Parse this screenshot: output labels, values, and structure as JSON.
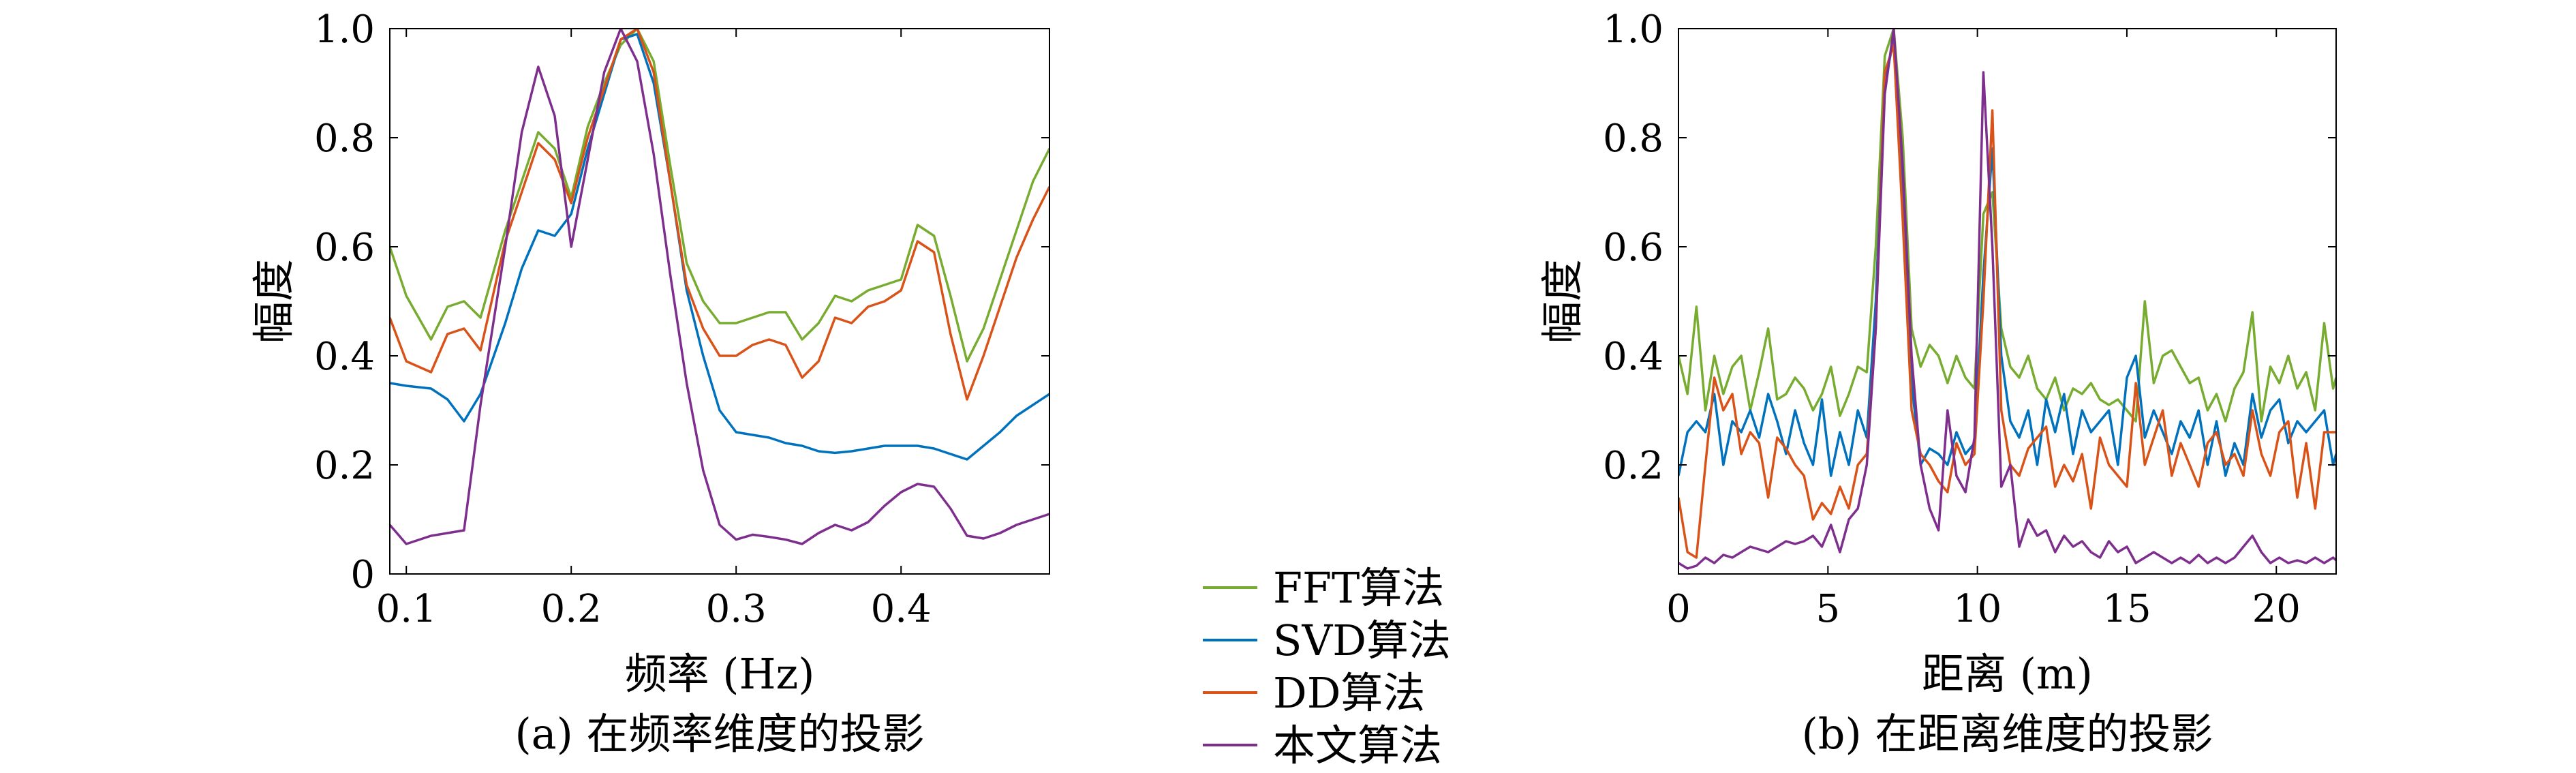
{
  "colors": {
    "fft": "#77ac30",
    "svd": "#0072bd",
    "dd": "#d95319",
    "ours": "#7e2f8e"
  },
  "legend": {
    "placement": "center",
    "items": [
      "FFT算法",
      "SVD算法",
      "DD算法",
      "本文算法"
    ]
  },
  "chart_data": [
    {
      "type": "line",
      "caption": "(a) 在频率维度的投影",
      "xlabel": "频率 (Hz)",
      "ylabel": "幅度",
      "xlim": [
        0.09,
        0.49
      ],
      "ylim": [
        0,
        1.0
      ],
      "xticks": [
        0.1,
        0.2,
        0.3,
        0.4
      ],
      "xtick_labels": [
        "0.1",
        "0.2",
        "0.3",
        "0.4"
      ],
      "yticks": [
        0,
        0.2,
        0.4,
        0.6,
        0.8,
        1.0
      ],
      "ytick_labels": [
        "0",
        "0.2",
        "0.4",
        "0.6",
        "0.8",
        "1.0"
      ],
      "grid": false,
      "series": [
        {
          "name": "FFT算法",
          "color_key": "fft",
          "x": [
            0.09,
            0.1,
            0.115,
            0.125,
            0.135,
            0.145,
            0.16,
            0.17,
            0.18,
            0.19,
            0.2,
            0.21,
            0.22,
            0.23,
            0.24,
            0.25,
            0.26,
            0.27,
            0.28,
            0.29,
            0.3,
            0.31,
            0.32,
            0.33,
            0.34,
            0.35,
            0.36,
            0.37,
            0.38,
            0.39,
            0.4,
            0.41,
            0.42,
            0.43,
            0.44,
            0.45,
            0.46,
            0.47,
            0.48,
            0.49
          ],
          "y": [
            0.6,
            0.51,
            0.43,
            0.49,
            0.5,
            0.47,
            0.63,
            0.72,
            0.81,
            0.78,
            0.69,
            0.82,
            0.9,
            0.97,
            1.0,
            0.94,
            0.75,
            0.57,
            0.5,
            0.46,
            0.46,
            0.47,
            0.48,
            0.48,
            0.43,
            0.46,
            0.51,
            0.5,
            0.52,
            0.53,
            0.54,
            0.64,
            0.62,
            0.51,
            0.39,
            0.45,
            0.54,
            0.63,
            0.72,
            0.78
          ]
        },
        {
          "name": "SVD算法",
          "color_key": "svd",
          "x": [
            0.09,
            0.1,
            0.115,
            0.125,
            0.135,
            0.145,
            0.16,
            0.17,
            0.18,
            0.19,
            0.2,
            0.21,
            0.22,
            0.23,
            0.24,
            0.25,
            0.26,
            0.27,
            0.28,
            0.29,
            0.3,
            0.31,
            0.32,
            0.33,
            0.34,
            0.35,
            0.36,
            0.37,
            0.38,
            0.39,
            0.4,
            0.41,
            0.42,
            0.43,
            0.44,
            0.45,
            0.46,
            0.47,
            0.48,
            0.49
          ],
          "y": [
            0.35,
            0.345,
            0.34,
            0.32,
            0.28,
            0.33,
            0.46,
            0.56,
            0.63,
            0.62,
            0.66,
            0.78,
            0.88,
            0.98,
            0.99,
            0.9,
            0.72,
            0.52,
            0.4,
            0.3,
            0.26,
            0.255,
            0.25,
            0.24,
            0.235,
            0.225,
            0.222,
            0.225,
            0.23,
            0.235,
            0.235,
            0.235,
            0.23,
            0.22,
            0.21,
            0.235,
            0.26,
            0.29,
            0.31,
            0.33
          ]
        },
        {
          "name": "DD算法",
          "color_key": "dd",
          "x": [
            0.09,
            0.1,
            0.115,
            0.125,
            0.135,
            0.145,
            0.16,
            0.17,
            0.18,
            0.19,
            0.2,
            0.21,
            0.22,
            0.23,
            0.24,
            0.25,
            0.26,
            0.27,
            0.28,
            0.29,
            0.3,
            0.31,
            0.32,
            0.33,
            0.34,
            0.35,
            0.36,
            0.37,
            0.38,
            0.39,
            0.4,
            0.41,
            0.42,
            0.43,
            0.44,
            0.45,
            0.46,
            0.47,
            0.48,
            0.49
          ],
          "y": [
            0.47,
            0.39,
            0.37,
            0.44,
            0.45,
            0.41,
            0.61,
            0.7,
            0.79,
            0.76,
            0.68,
            0.8,
            0.89,
            0.98,
            1.0,
            0.92,
            0.72,
            0.53,
            0.45,
            0.4,
            0.4,
            0.42,
            0.43,
            0.42,
            0.36,
            0.39,
            0.47,
            0.46,
            0.49,
            0.5,
            0.52,
            0.61,
            0.59,
            0.44,
            0.32,
            0.4,
            0.49,
            0.58,
            0.65,
            0.71
          ]
        },
        {
          "name": "本文算法",
          "color_key": "ours",
          "x": [
            0.09,
            0.1,
            0.115,
            0.125,
            0.135,
            0.145,
            0.16,
            0.17,
            0.18,
            0.19,
            0.2,
            0.21,
            0.22,
            0.23,
            0.24,
            0.25,
            0.26,
            0.27,
            0.28,
            0.29,
            0.3,
            0.31,
            0.32,
            0.33,
            0.34,
            0.35,
            0.36,
            0.37,
            0.38,
            0.39,
            0.4,
            0.41,
            0.42,
            0.43,
            0.44,
            0.45,
            0.46,
            0.47,
            0.48,
            0.49
          ],
          "y": [
            0.09,
            0.055,
            0.07,
            0.075,
            0.08,
            0.31,
            0.6,
            0.81,
            0.93,
            0.84,
            0.6,
            0.76,
            0.92,
            1.0,
            0.94,
            0.77,
            0.55,
            0.35,
            0.19,
            0.09,
            0.063,
            0.072,
            0.068,
            0.063,
            0.055,
            0.075,
            0.09,
            0.08,
            0.095,
            0.125,
            0.15,
            0.165,
            0.16,
            0.12,
            0.07,
            0.065,
            0.075,
            0.09,
            0.1,
            0.11
          ]
        }
      ]
    },
    {
      "type": "line",
      "caption": "(b) 在距离维度的投影",
      "xlabel": "距离 (m)",
      "ylabel": "幅度",
      "xlim": [
        0,
        22
      ],
      "ylim": [
        0,
        1.0
      ],
      "xticks": [
        0,
        5,
        10,
        15,
        20
      ],
      "xtick_labels": [
        "0",
        "5",
        "10",
        "15",
        "20"
      ],
      "yticks": [
        0.2,
        0.4,
        0.6,
        0.8,
        1.0
      ],
      "ytick_labels": [
        "0.2",
        "0.4",
        "0.6",
        "0.8",
        "1.0"
      ],
      "grid": false,
      "series": [
        {
          "name": "FFT算法",
          "color_key": "fft",
          "x": [
            0,
            0.3,
            0.6,
            0.9,
            1.2,
            1.5,
            1.8,
            2.1,
            2.4,
            2.7,
            3.0,
            3.3,
            3.6,
            3.9,
            4.2,
            4.5,
            4.8,
            5.1,
            5.4,
            5.7,
            6.0,
            6.3,
            6.6,
            6.9,
            7.2,
            7.5,
            7.8,
            8.1,
            8.4,
            8.7,
            9.0,
            9.3,
            9.6,
            9.9,
            10.2,
            10.5,
            10.8,
            11.1,
            11.4,
            11.7,
            12.0,
            12.3,
            12.6,
            12.9,
            13.2,
            13.5,
            13.8,
            14.1,
            14.4,
            14.7,
            15.0,
            15.3,
            15.6,
            15.9,
            16.2,
            16.5,
            16.8,
            17.1,
            17.4,
            17.7,
            18.0,
            18.3,
            18.6,
            18.9,
            19.2,
            19.5,
            19.8,
            20.1,
            20.4,
            20.7,
            21.0,
            21.3,
            21.6,
            21.9,
            22.0
          ],
          "y": [
            0.4,
            0.33,
            0.49,
            0.3,
            0.4,
            0.33,
            0.38,
            0.4,
            0.3,
            0.37,
            0.45,
            0.32,
            0.33,
            0.36,
            0.34,
            0.3,
            0.33,
            0.38,
            0.29,
            0.33,
            0.38,
            0.37,
            0.6,
            0.95,
            1.0,
            0.8,
            0.45,
            0.38,
            0.42,
            0.4,
            0.35,
            0.4,
            0.36,
            0.34,
            0.66,
            0.7,
            0.45,
            0.38,
            0.36,
            0.4,
            0.34,
            0.32,
            0.36,
            0.3,
            0.34,
            0.33,
            0.35,
            0.32,
            0.31,
            0.32,
            0.3,
            0.28,
            0.5,
            0.35,
            0.4,
            0.41,
            0.38,
            0.35,
            0.36,
            0.3,
            0.33,
            0.28,
            0.34,
            0.37,
            0.48,
            0.28,
            0.38,
            0.35,
            0.4,
            0.34,
            0.37,
            0.3,
            0.46,
            0.34,
            0.36
          ]
        },
        {
          "name": "SVD算法",
          "color_key": "svd",
          "x": [
            0,
            0.3,
            0.6,
            0.9,
            1.2,
            1.5,
            1.8,
            2.1,
            2.4,
            2.7,
            3.0,
            3.3,
            3.6,
            3.9,
            4.2,
            4.5,
            4.8,
            5.1,
            5.4,
            5.7,
            6.0,
            6.3,
            6.6,
            6.9,
            7.2,
            7.5,
            7.8,
            8.1,
            8.4,
            8.7,
            9.0,
            9.3,
            9.6,
            9.9,
            10.2,
            10.5,
            10.8,
            11.1,
            11.4,
            11.7,
            12.0,
            12.3,
            12.6,
            12.9,
            13.2,
            13.5,
            13.8,
            14.1,
            14.4,
            14.7,
            15.0,
            15.3,
            15.6,
            15.9,
            16.2,
            16.5,
            16.8,
            17.1,
            17.4,
            17.7,
            18.0,
            18.3,
            18.6,
            18.9,
            19.2,
            19.5,
            19.8,
            20.1,
            20.4,
            20.7,
            21.0,
            21.3,
            21.6,
            21.9,
            22.0
          ],
          "y": [
            0.18,
            0.26,
            0.28,
            0.26,
            0.33,
            0.2,
            0.28,
            0.26,
            0.3,
            0.25,
            0.33,
            0.28,
            0.22,
            0.3,
            0.24,
            0.2,
            0.32,
            0.18,
            0.26,
            0.2,
            0.3,
            0.25,
            0.5,
            0.9,
            0.98,
            0.7,
            0.35,
            0.2,
            0.23,
            0.22,
            0.2,
            0.26,
            0.22,
            0.24,
            0.55,
            0.78,
            0.4,
            0.28,
            0.25,
            0.3,
            0.2,
            0.32,
            0.26,
            0.33,
            0.22,
            0.3,
            0.26,
            0.28,
            0.3,
            0.2,
            0.36,
            0.4,
            0.25,
            0.3,
            0.26,
            0.22,
            0.28,
            0.25,
            0.3,
            0.2,
            0.28,
            0.18,
            0.24,
            0.2,
            0.33,
            0.25,
            0.3,
            0.32,
            0.24,
            0.28,
            0.26,
            0.28,
            0.3,
            0.2,
            0.22
          ]
        },
        {
          "name": "DD算法",
          "color_key": "dd",
          "x": [
            0,
            0.3,
            0.6,
            0.9,
            1.2,
            1.5,
            1.8,
            2.1,
            2.4,
            2.7,
            3.0,
            3.3,
            3.6,
            3.9,
            4.2,
            4.5,
            4.8,
            5.1,
            5.4,
            5.7,
            6.0,
            6.3,
            6.6,
            6.9,
            7.2,
            7.5,
            7.8,
            8.1,
            8.4,
            8.7,
            9.0,
            9.3,
            9.6,
            9.9,
            10.2,
            10.5,
            10.8,
            11.1,
            11.4,
            11.7,
            12.0,
            12.3,
            12.6,
            12.9,
            13.2,
            13.5,
            13.8,
            14.1,
            14.4,
            14.7,
            15.0,
            15.3,
            15.6,
            15.9,
            16.2,
            16.5,
            16.8,
            17.1,
            17.4,
            17.7,
            18.0,
            18.3,
            18.6,
            18.9,
            19.2,
            19.5,
            19.8,
            20.1,
            20.4,
            20.7,
            21.0,
            21.3,
            21.6,
            21.9,
            22.0
          ],
          "y": [
            0.14,
            0.04,
            0.03,
            0.2,
            0.36,
            0.3,
            0.33,
            0.22,
            0.26,
            0.24,
            0.14,
            0.25,
            0.23,
            0.2,
            0.18,
            0.1,
            0.13,
            0.11,
            0.16,
            0.12,
            0.2,
            0.22,
            0.45,
            0.92,
            0.97,
            0.65,
            0.3,
            0.22,
            0.2,
            0.17,
            0.15,
            0.24,
            0.2,
            0.22,
            0.5,
            0.85,
            0.3,
            0.2,
            0.18,
            0.23,
            0.25,
            0.27,
            0.16,
            0.2,
            0.17,
            0.22,
            0.12,
            0.25,
            0.2,
            0.18,
            0.16,
            0.35,
            0.2,
            0.25,
            0.3,
            0.18,
            0.24,
            0.2,
            0.16,
            0.24,
            0.26,
            0.2,
            0.22,
            0.18,
            0.3,
            0.22,
            0.18,
            0.26,
            0.28,
            0.14,
            0.24,
            0.12,
            0.26,
            0.26,
            0.26
          ]
        },
        {
          "name": "本文算法",
          "color_key": "ours",
          "x": [
            0,
            0.3,
            0.6,
            0.9,
            1.2,
            1.5,
            1.8,
            2.1,
            2.4,
            2.7,
            3.0,
            3.3,
            3.6,
            3.9,
            4.2,
            4.5,
            4.8,
            5.1,
            5.4,
            5.7,
            6.0,
            6.3,
            6.6,
            6.9,
            7.2,
            7.5,
            7.8,
            8.1,
            8.4,
            8.7,
            9.0,
            9.3,
            9.6,
            9.9,
            10.2,
            10.5,
            10.8,
            11.1,
            11.4,
            11.7,
            12.0,
            12.3,
            12.6,
            12.9,
            13.2,
            13.5,
            13.8,
            14.1,
            14.4,
            14.7,
            15.0,
            15.3,
            15.6,
            15.9,
            16.2,
            16.5,
            16.8,
            17.1,
            17.4,
            17.7,
            18.0,
            18.3,
            18.6,
            18.9,
            19.2,
            19.5,
            19.8,
            20.1,
            20.4,
            20.7,
            21.0,
            21.3,
            21.6,
            21.9,
            22.0
          ],
          "y": [
            0.02,
            0.01,
            0.015,
            0.03,
            0.02,
            0.035,
            0.03,
            0.04,
            0.05,
            0.045,
            0.04,
            0.05,
            0.06,
            0.055,
            0.06,
            0.07,
            0.05,
            0.09,
            0.04,
            0.1,
            0.12,
            0.2,
            0.45,
            0.88,
            1.0,
            0.75,
            0.4,
            0.2,
            0.12,
            0.08,
            0.3,
            0.18,
            0.15,
            0.25,
            0.92,
            0.6,
            0.16,
            0.2,
            0.05,
            0.1,
            0.07,
            0.08,
            0.04,
            0.07,
            0.05,
            0.06,
            0.04,
            0.03,
            0.06,
            0.04,
            0.05,
            0.02,
            0.03,
            0.04,
            0.03,
            0.02,
            0.03,
            0.02,
            0.035,
            0.02,
            0.03,
            0.02,
            0.03,
            0.05,
            0.07,
            0.04,
            0.02,
            0.03,
            0.02,
            0.025,
            0.02,
            0.03,
            0.02,
            0.03,
            0.025
          ]
        }
      ]
    }
  ]
}
